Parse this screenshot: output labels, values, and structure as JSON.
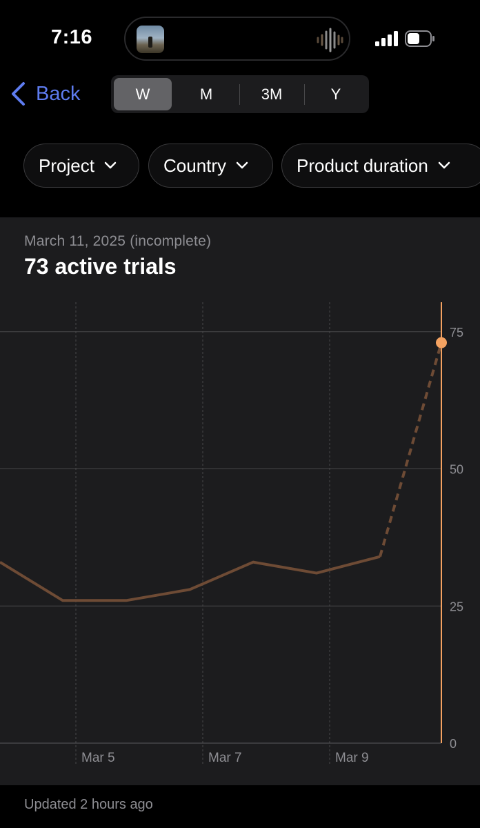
{
  "status_bar": {
    "time": "7:16",
    "island_icons": [
      "album-art-icon",
      "waveform-icon"
    ],
    "status_icons": [
      "cellular-signal-icon",
      "battery-icon"
    ]
  },
  "nav": {
    "back_label": "Back",
    "accent_color": "#5e7cf0"
  },
  "period_selector": {
    "options": [
      "W",
      "M",
      "3M",
      "Y"
    ],
    "selected": "W"
  },
  "filters": [
    {
      "label": "Project"
    },
    {
      "label": "Country"
    },
    {
      "label": "Product duration"
    }
  ],
  "summary": {
    "date_label": "March 11, 2025 (incomplete)",
    "headline": "73 active trials"
  },
  "chart_data": {
    "type": "line",
    "title": "",
    "xlabel": "",
    "ylabel": "",
    "x_tick_labels": [
      "Mar 5",
      "Mar 7",
      "Mar 9"
    ],
    "y_tick_labels": [
      "75",
      "50",
      "25",
      "0"
    ],
    "ylim": [
      0,
      80
    ],
    "grid": true,
    "series": [
      {
        "x": [
          "Mar 4",
          "Mar 5",
          "Mar 6",
          "Mar 7",
          "Mar 8",
          "Mar 9",
          "Mar 10",
          "Mar 11"
        ],
        "values": [
          33,
          26,
          26,
          28,
          33,
          31,
          34,
          73
        ],
        "incomplete_from_index": 6,
        "color": "#6e4b35",
        "highlight_color": "#f4a261"
      }
    ],
    "selected_point": {
      "x": "Mar 11",
      "value": 73
    }
  },
  "footer": {
    "updated_label": "Updated 2 hours ago"
  }
}
